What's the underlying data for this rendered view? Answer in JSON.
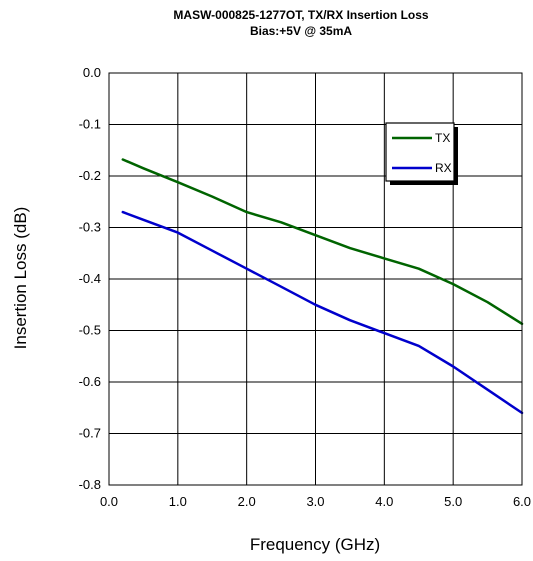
{
  "chart_data": {
    "type": "line",
    "title": "MASW-000825-1277OT, TX/RX Insertion Loss",
    "subtitle": "Bias:+5V @ 35mA",
    "xlabel": "Frequency (GHz)",
    "ylabel": "Insertion Loss (dB)",
    "xlim": [
      0.0,
      6.0
    ],
    "ylim": [
      -0.8,
      0.0
    ],
    "xticks": [
      "0.0",
      "1.0",
      "2.0",
      "3.0",
      "4.0",
      "5.0",
      "6.0"
    ],
    "yticks": [
      "0.0",
      "-0.1",
      "-0.2",
      "-0.3",
      "-0.4",
      "-0.5",
      "-0.6",
      "-0.7",
      "-0.8"
    ],
    "grid": true,
    "legend_position": "top-right",
    "series": [
      {
        "name": "TX",
        "color": "#006400",
        "x": [
          0.2,
          0.5,
          1.0,
          1.5,
          2.0,
          2.5,
          3.0,
          3.5,
          4.0,
          4.5,
          5.0,
          5.5,
          6.0
        ],
        "values": [
          -0.168,
          -0.185,
          -0.212,
          -0.24,
          -0.27,
          -0.29,
          -0.315,
          -0.34,
          -0.36,
          -0.38,
          -0.41,
          -0.445,
          -0.487
        ]
      },
      {
        "name": "RX",
        "color": "#0000cc",
        "x": [
          0.2,
          0.5,
          1.0,
          1.5,
          2.0,
          2.5,
          3.0,
          3.5,
          4.0,
          4.5,
          5.0,
          5.5,
          6.0
        ],
        "values": [
          -0.27,
          -0.285,
          -0.31,
          -0.345,
          -0.38,
          -0.415,
          -0.45,
          -0.48,
          -0.505,
          -0.53,
          -0.57,
          -0.615,
          -0.66
        ]
      }
    ]
  }
}
